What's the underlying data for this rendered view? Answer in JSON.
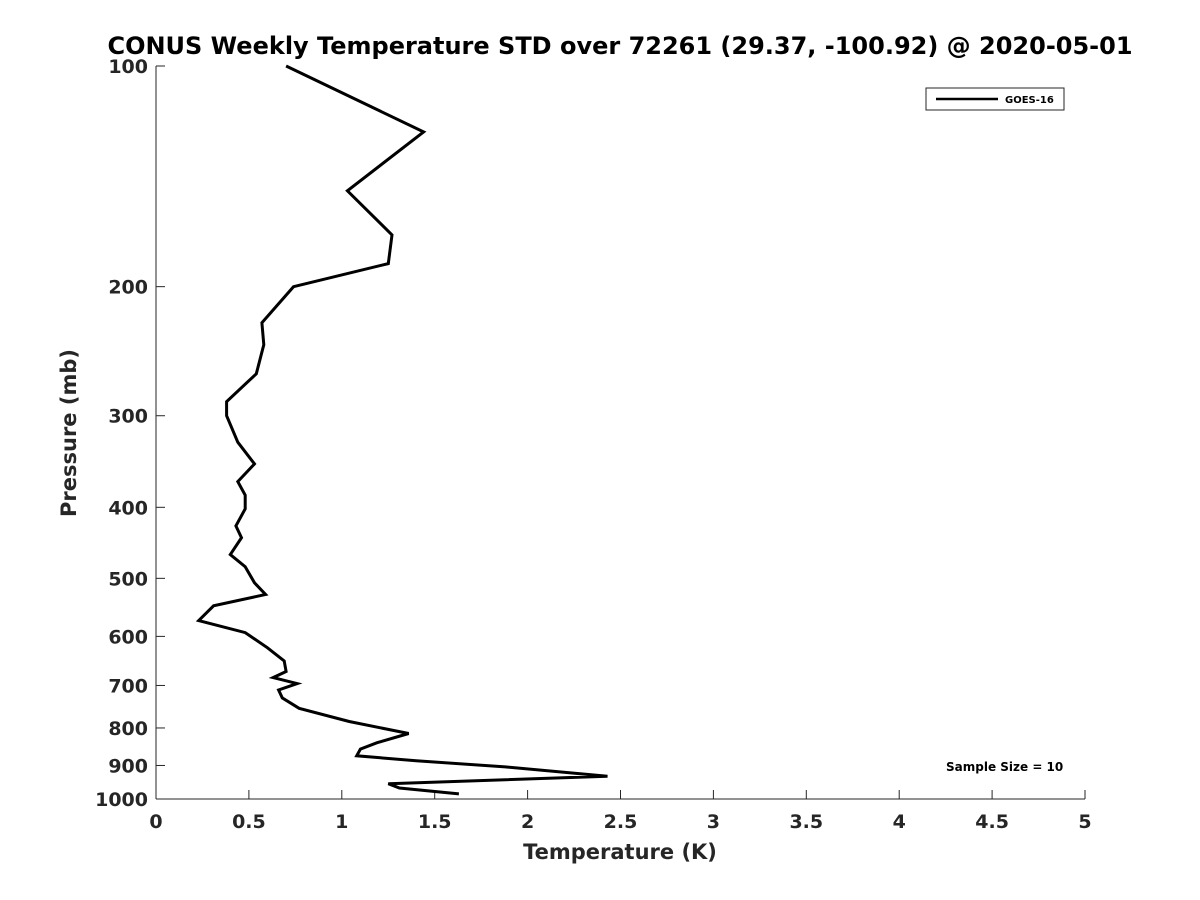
{
  "chart_data": {
    "type": "line",
    "title": "CONUS Weekly Temperature STD over 72261 (29.37, -100.92) @ 2020-05-01",
    "xlabel": "Temperature (K)",
    "ylabel": "Pressure (mb)",
    "xlim": [
      0,
      5
    ],
    "ylim": [
      1000,
      100
    ],
    "y_scale": "log",
    "y_reversed": true,
    "xticks": [
      "0",
      "0.5",
      "1",
      "1.5",
      "2",
      "2.5",
      "3",
      "3.5",
      "4",
      "4.5",
      "5"
    ],
    "yticks": [
      "100",
      "200",
      "300",
      "400",
      "500",
      "600",
      "700",
      "800",
      "900",
      "1000"
    ],
    "grid": false,
    "legend_position": "top-right",
    "series": [
      {
        "name": "GOES-16",
        "color": "#000000",
        "x": [
          0.7,
          1.44,
          1.03,
          1.27,
          1.25,
          0.74,
          0.57,
          0.58,
          0.54,
          0.38,
          0.38,
          0.44,
          0.53,
          0.44,
          0.48,
          0.48,
          0.43,
          0.46,
          0.4,
          0.48,
          0.53,
          0.59,
          0.31,
          0.23,
          0.48,
          0.6,
          0.69,
          0.7,
          0.63,
          0.76,
          0.66,
          0.68,
          0.77,
          1.04,
          1.36,
          1.19,
          1.1,
          1.08,
          1.4,
          1.88,
          2.43,
          1.25,
          1.31,
          1.63
        ],
        "y": [
          100,
          123,
          148,
          170,
          186,
          200,
          224,
          240,
          263,
          287,
          300,
          326,
          349,
          369,
          385,
          402,
          424,
          440,
          464,
          482,
          507,
          526,
          545,
          571,
          593,
          622,
          648,
          670,
          683,
          696,
          710,
          728,
          752,
          784,
          814,
          838,
          855,
          873,
          887,
          904,
          931,
          953,
          966,
          984
        ]
      }
    ],
    "annotation": "Sample Size = 10"
  }
}
